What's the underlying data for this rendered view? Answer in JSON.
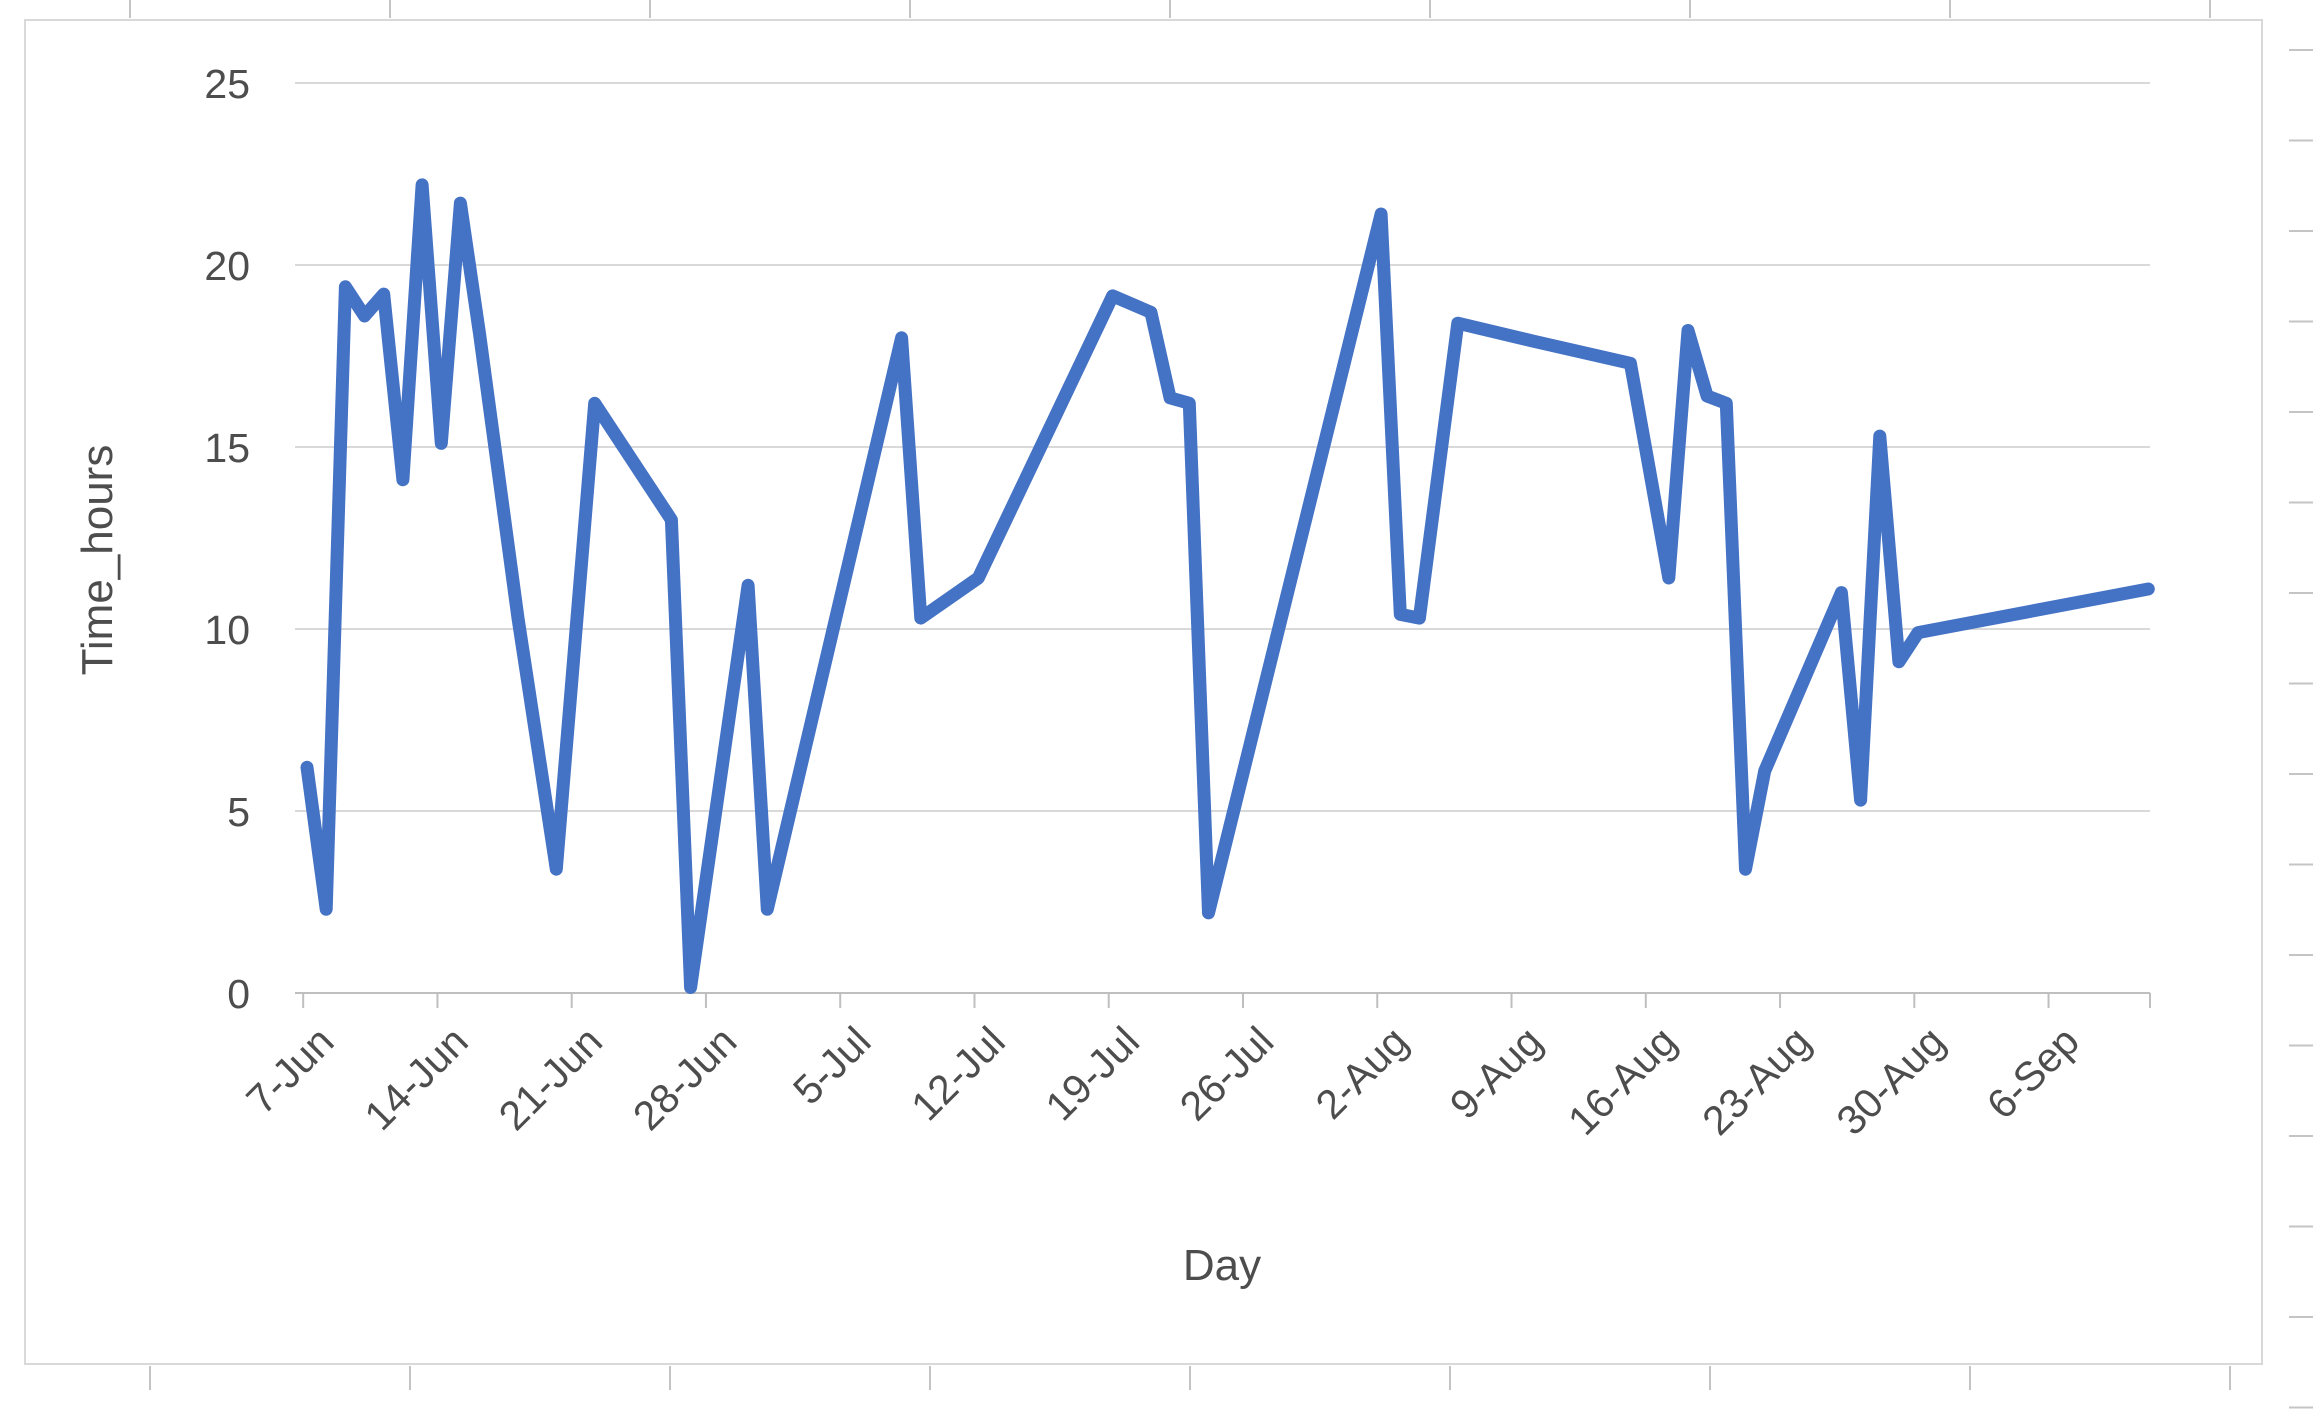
{
  "chart_data": {
    "type": "line",
    "title": "",
    "xlabel": "Day",
    "ylabel": "Time_hours",
    "ylim": [
      0,
      25
    ],
    "yticks": [
      0,
      5,
      10,
      15,
      20,
      25
    ],
    "grid": true,
    "legend": "none",
    "x_axis_kind": "daily dates, tick labels every 7 days",
    "x_tick_labels": [
      "7-Jun",
      "14-Jun",
      "21-Jun",
      "28-Jun",
      "5-Jul",
      "12-Jul",
      "19-Jul",
      "26-Jul",
      "2-Aug",
      "9-Aug",
      "16-Aug",
      "23-Aug",
      "30-Aug",
      "6-Sep"
    ],
    "x_tick_days": [
      1,
      8,
      15,
      22,
      29,
      36,
      43,
      50,
      57,
      64,
      71,
      78,
      85,
      92
    ],
    "series": [
      {
        "name": "Time_hours",
        "color": "#4472C4",
        "points": [
          {
            "date": "6-Jun",
            "day": 0,
            "value": 6.2
          },
          {
            "date": "7-Jun",
            "day": 1,
            "value": 2.3
          },
          {
            "date": "8-Jun",
            "day": 2,
            "value": 19.4
          },
          {
            "date": "9-Jun",
            "day": 3,
            "value": 18.6
          },
          {
            "date": "10-Jun",
            "day": 4,
            "value": 19.2
          },
          {
            "date": "11-Jun",
            "day": 5,
            "value": 14.1
          },
          {
            "date": "12-Jun",
            "day": 6,
            "value": 22.2
          },
          {
            "date": "13-Jun",
            "day": 7,
            "value": 15.1
          },
          {
            "date": "14-Jun",
            "day": 8,
            "value": 21.7
          },
          {
            "date": "15-Jun",
            "day": 9,
            "value": 18.1
          },
          {
            "date": "17-Jun",
            "day": 11,
            "value": 10.3
          },
          {
            "date": "19-Jun",
            "day": 13,
            "value": 3.4
          },
          {
            "date": "21-Jun",
            "day": 15,
            "value": 16.2
          },
          {
            "date": "25-Jun",
            "day": 19,
            "value": 13.0
          },
          {
            "date": "26-Jun",
            "day": 20,
            "value": 0.15
          },
          {
            "date": "29-Jun",
            "day": 23,
            "value": 11.2
          },
          {
            "date": "30-Jun",
            "day": 24,
            "value": 2.3
          },
          {
            "date": "7-Jul",
            "day": 31,
            "value": 18.0
          },
          {
            "date": "8-Jul",
            "day": 32,
            "value": 10.3
          },
          {
            "date": "11-Jul",
            "day": 35,
            "value": 11.4
          },
          {
            "date": "18-Jul",
            "day": 42,
            "value": 19.15
          },
          {
            "date": "20-Jul",
            "day": 44,
            "value": 18.7
          },
          {
            "date": "21-Jul",
            "day": 45,
            "value": 16.35
          },
          {
            "date": "22-Jul",
            "day": 46,
            "value": 16.2
          },
          {
            "date": "23-Jul",
            "day": 47,
            "value": 2.2
          },
          {
            "date": "1-Aug",
            "day": 56,
            "value": 21.4
          },
          {
            "date": "2-Aug",
            "day": 57,
            "value": 10.4
          },
          {
            "date": "3-Aug",
            "day": 58,
            "value": 10.3
          },
          {
            "date": "5-Aug",
            "day": 60,
            "value": 18.4
          },
          {
            "date": "9-Aug",
            "day": 64,
            "value": 17.9
          },
          {
            "date": "14-Aug",
            "day": 69,
            "value": 17.3
          },
          {
            "date": "16-Aug",
            "day": 71,
            "value": 11.4
          },
          {
            "date": "17-Aug",
            "day": 72,
            "value": 18.2
          },
          {
            "date": "18-Aug",
            "day": 73,
            "value": 16.4
          },
          {
            "date": "19-Aug",
            "day": 74,
            "value": 16.2
          },
          {
            "date": "20-Aug",
            "day": 75,
            "value": 3.4
          },
          {
            "date": "21-Aug",
            "day": 76,
            "value": 6.1
          },
          {
            "date": "25-Aug",
            "day": 80,
            "value": 11.0
          },
          {
            "date": "26-Aug",
            "day": 81,
            "value": 5.3
          },
          {
            "date": "27-Aug",
            "day": 82,
            "value": 15.3
          },
          {
            "date": "28-Aug",
            "day": 83,
            "value": 9.1
          },
          {
            "date": "29-Aug",
            "day": 84,
            "value": 9.9
          },
          {
            "date": "10-Sep",
            "day": 96,
            "value": 11.1
          }
        ]
      }
    ]
  },
  "colors": {
    "line": "#4472C4",
    "gridline": "#D9D9D9",
    "axis_line": "#BFBFBF",
    "tick_mark": "#BFBFBF",
    "text": "#4D4D4D",
    "chart_border": "#D9D9D9",
    "edge_tick": "#C4C4C4",
    "background": "#FFFFFF"
  }
}
